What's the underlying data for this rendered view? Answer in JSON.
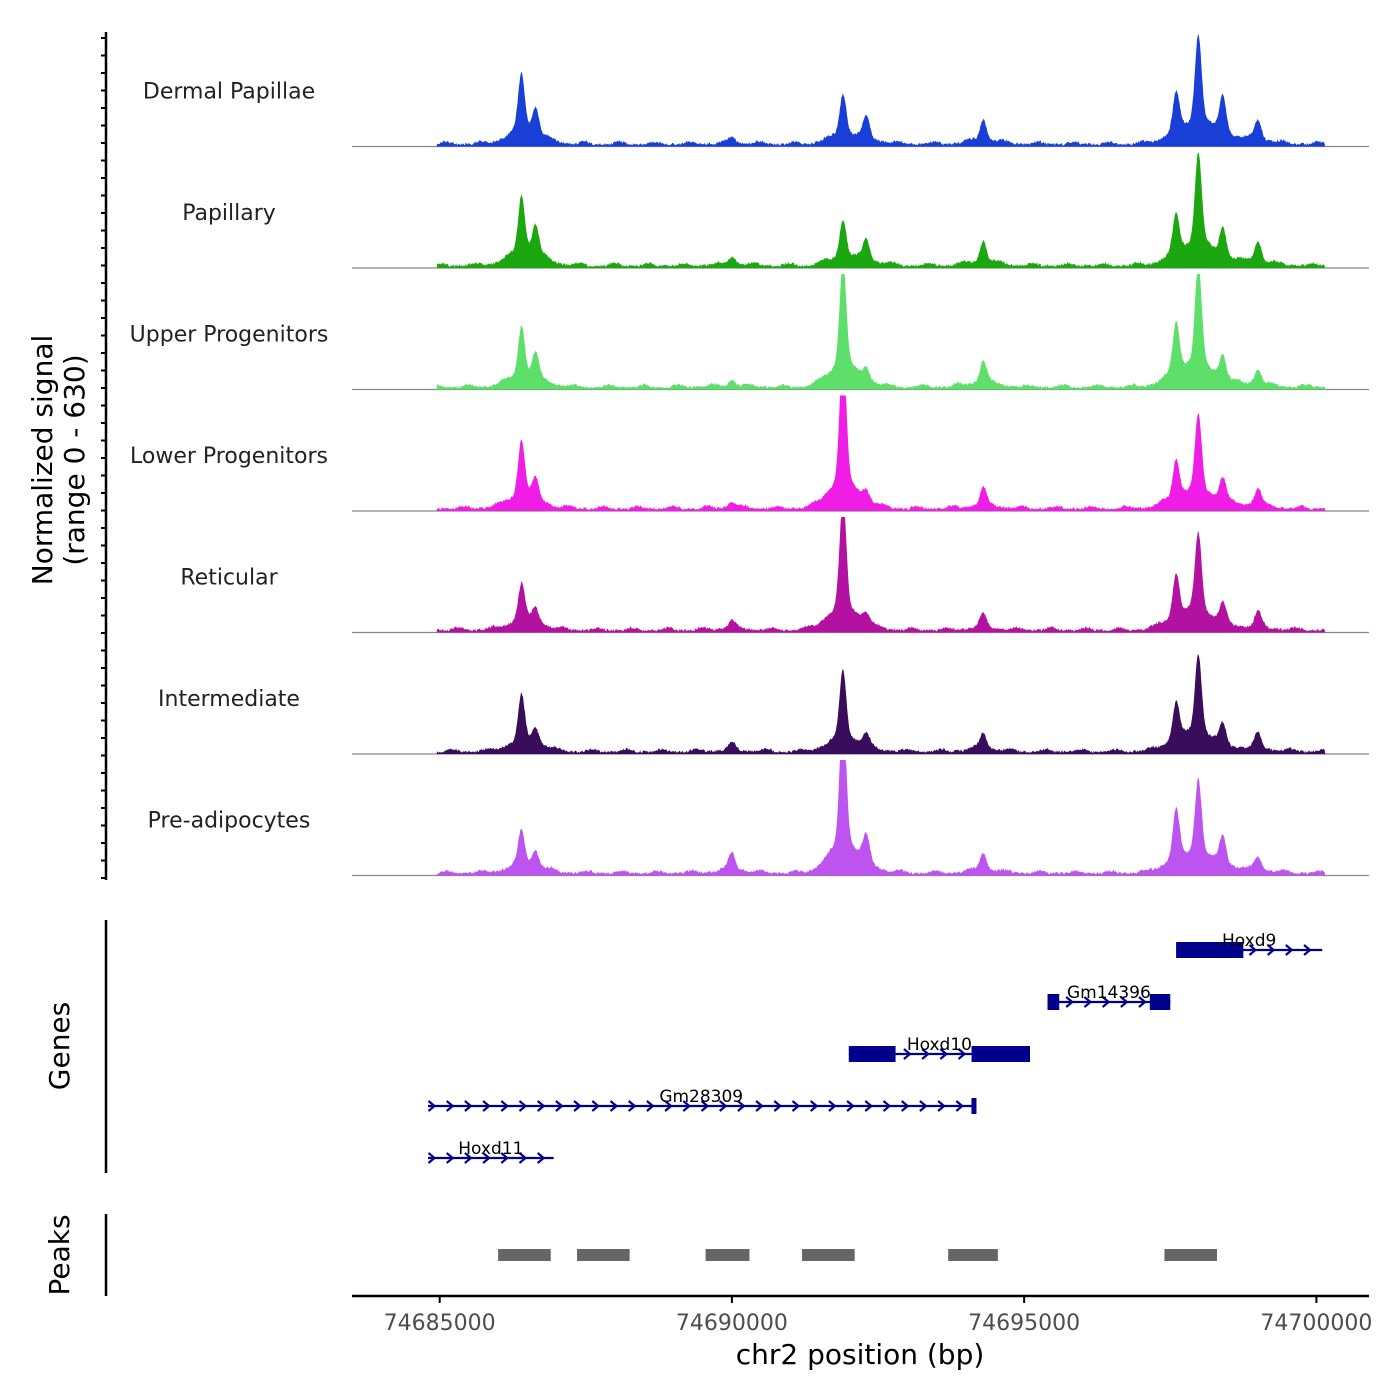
{
  "chart_data": {
    "type": "area",
    "title": "",
    "ylabel_signal": [
      "Normalized signal",
      "(range 0 - 630)"
    ],
    "ylabel_genes": "Genes",
    "ylabel_peaks": "Peaks",
    "xlabel": "chr2 position (bp)",
    "xlim": [
      74683500,
      74700900
    ],
    "signal_range": [
      0,
      630
    ],
    "x_ticks": [
      74685000,
      74690000,
      74695000,
      74700000
    ],
    "x_tick_labels": [
      "74685000",
      "74690000",
      "74695000",
      "74700000"
    ],
    "peak_positions": [
      74686400,
      74687300,
      74690000,
      74691900,
      74694300,
      74697600,
      74697980
    ],
    "series": [
      {
        "name": "Dermal Papillae",
        "color": "#1a3fd6",
        "peaks": [
          [
            74686400,
            300
          ],
          [
            74686640,
            130
          ],
          [
            74690000,
            30
          ],
          [
            74691900,
            220
          ],
          [
            74692300,
            110
          ],
          [
            74694300,
            110
          ],
          [
            74697600,
            200
          ],
          [
            74697980,
            470
          ],
          [
            74698400,
            200
          ],
          [
            74699000,
            110
          ]
        ]
      },
      {
        "name": "Papillary",
        "color": "#1aa70f",
        "peaks": [
          [
            74686400,
            300
          ],
          [
            74686640,
            150
          ],
          [
            74690000,
            40
          ],
          [
            74691900,
            200
          ],
          [
            74692300,
            110
          ],
          [
            74694300,
            110
          ],
          [
            74697600,
            200
          ],
          [
            74697980,
            490
          ],
          [
            74698400,
            150
          ],
          [
            74699000,
            110
          ]
        ]
      },
      {
        "name": "Upper Progenitors",
        "color": "#5ddf6a",
        "peaks": [
          [
            74686400,
            260
          ],
          [
            74686640,
            120
          ],
          [
            74690000,
            30
          ],
          [
            74691900,
            560
          ],
          [
            74692300,
            60
          ],
          [
            74694300,
            120
          ],
          [
            74697600,
            260
          ],
          [
            74697980,
            520
          ],
          [
            74698400,
            120
          ],
          [
            74699000,
            80
          ]
        ]
      },
      {
        "name": "Lower Progenitors",
        "color": "#ef1de6",
        "peaks": [
          [
            74686400,
            300
          ],
          [
            74686640,
            100
          ],
          [
            74690000,
            30
          ],
          [
            74691900,
            700
          ],
          [
            74692300,
            50
          ],
          [
            74694300,
            90
          ],
          [
            74697600,
            200
          ],
          [
            74697980,
            400
          ],
          [
            74698400,
            120
          ],
          [
            74699000,
            90
          ]
        ]
      },
      {
        "name": "Reticular",
        "color": "#b3119f",
        "peaks": [
          [
            74686400,
            200
          ],
          [
            74686640,
            80
          ],
          [
            74690000,
            40
          ],
          [
            74691900,
            580
          ],
          [
            74692300,
            50
          ],
          [
            74694300,
            70
          ],
          [
            74697600,
            230
          ],
          [
            74697980,
            420
          ],
          [
            74698400,
            100
          ],
          [
            74699000,
            80
          ]
        ]
      },
      {
        "name": "Intermediate",
        "color": "#3a0c5c",
        "peaks": [
          [
            74686400,
            240
          ],
          [
            74686640,
            80
          ],
          [
            74690000,
            35
          ],
          [
            74691900,
            360
          ],
          [
            74692300,
            60
          ],
          [
            74694300,
            80
          ],
          [
            74697600,
            200
          ],
          [
            74697980,
            420
          ],
          [
            74698400,
            100
          ],
          [
            74699000,
            80
          ]
        ]
      },
      {
        "name": "Pre-adipocytes",
        "color": "#bd54f0",
        "peaks": [
          [
            74686400,
            180
          ],
          [
            74686640,
            80
          ],
          [
            74690000,
            90
          ],
          [
            74691900,
            720
          ],
          [
            74692300,
            130
          ],
          [
            74694300,
            90
          ],
          [
            74697600,
            260
          ],
          [
            74697980,
            400
          ],
          [
            74698400,
            150
          ],
          [
            74699000,
            70
          ]
        ]
      }
    ],
    "genes": [
      {
        "name": "Hoxd9",
        "start": 74697600,
        "end": 74700100,
        "strand": "+",
        "exons": [
          [
            74697600,
            74698750
          ]
        ],
        "start_tick": false,
        "end_tick": false
      },
      {
        "name": "Gm14396",
        "start": 74695400,
        "end": 74697500,
        "strand": "+",
        "exons": [
          [
            74695400,
            74695600
          ],
          [
            74697150,
            74697500
          ]
        ],
        "start_tick": false,
        "end_tick": false
      },
      {
        "name": "Hoxd10",
        "start": 74692000,
        "end": 74695100,
        "strand": "+",
        "exons": [
          [
            74692000,
            74692800
          ],
          [
            74694100,
            74695100
          ]
        ],
        "start_tick": false,
        "end_tick": false
      },
      {
        "name": "Gm28309",
        "start": 74684800,
        "end": 74694150,
        "strand": "+",
        "exons": [],
        "start_tick": false,
        "end_tick": true
      },
      {
        "name": "Hoxd11",
        "start": 74684800,
        "end": 74686950,
        "strand": "+",
        "exons": [],
        "start_tick": false,
        "end_tick": false
      }
    ],
    "peak_regions": [
      [
        74686000,
        74686900
      ],
      [
        74687350,
        74688250
      ],
      [
        74689550,
        74690300
      ],
      [
        74691200,
        74692100
      ],
      [
        74693700,
        74694550
      ],
      [
        74697400,
        74698300
      ]
    ]
  }
}
